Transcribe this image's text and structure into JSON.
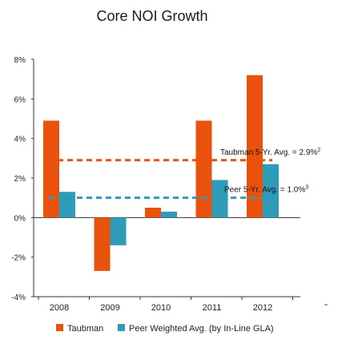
{
  "chart_data": {
    "type": "bar",
    "title": "Core NOI Growth",
    "xlabel": "",
    "ylabel": "",
    "categories": [
      "2008",
      "2009",
      "2010",
      "2011",
      "2012"
    ],
    "ylim": [
      -4,
      8
    ],
    "yticks": [
      "-4%",
      "-2%",
      "0%",
      "2%",
      "4%",
      "6%",
      "8%"
    ],
    "ytick_values": [
      -4,
      -2,
      0,
      2,
      4,
      6,
      8
    ],
    "series": [
      {
        "name": "Taubman",
        "color": "#e8520c",
        "values": [
          4.9,
          -2.7,
          0.5,
          4.9,
          7.2
        ]
      },
      {
        "name": "Peer Weighted Avg. (by In-Line GLA)",
        "color": "#2e9bb8",
        "values": [
          1.3,
          -1.4,
          0.3,
          1.9,
          2.7
        ]
      }
    ],
    "reference_lines": [
      {
        "label": "Taubman 5-Yr. Avg. = 2.9%",
        "superscript": "2",
        "value": 2.9,
        "color": "#e8520c"
      },
      {
        "label": "Peer 5-Yr. Avg. = 1.0%",
        "superscript": "3",
        "value": 1.0,
        "color": "#2e9bb8"
      }
    ],
    "legend_position": "bottom",
    "grid": false
  }
}
